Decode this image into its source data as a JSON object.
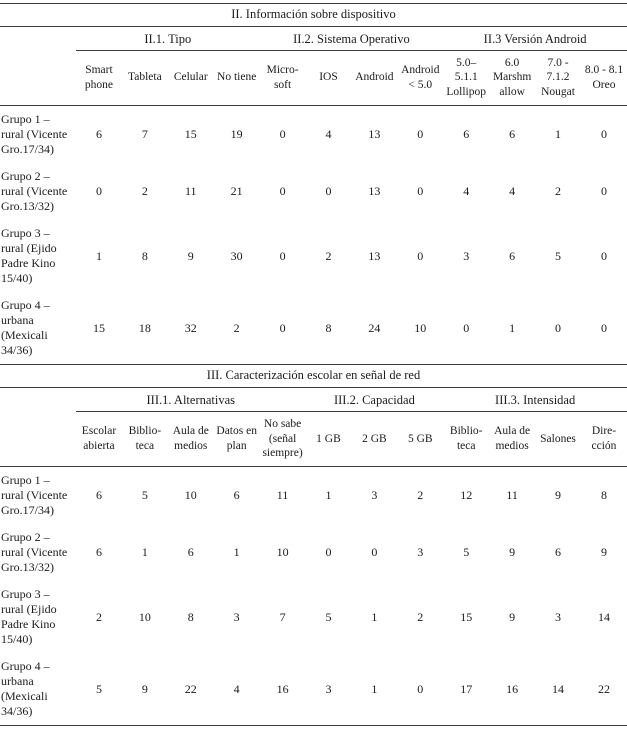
{
  "colors": {
    "rule": "#3c3c3c",
    "text": "#1b1b1b",
    "background": "#ffffff"
  },
  "table1": {
    "title": "II. Información sobre dispositivo",
    "groups": [
      {
        "label": "II.1. Tipo",
        "span": 4
      },
      {
        "label": "II.2. Sistema Operativo",
        "span": 4
      },
      {
        "label": "II.3 Versión Android",
        "span": 4
      }
    ],
    "columns": [
      "Smart phone",
      "Tableta",
      "Celular",
      "No tiene",
      "Micro- soft",
      "IOS",
      "Android",
      "Android < 5.0",
      "5.0– 5.1.1 Lollipop",
      "6.0 Marshm allow",
      "7.0 - 7.1.2 Nougat",
      "8.0 - 8.1 Oreo"
    ],
    "rows": [
      {
        "label": "Grupo 1 – rural (Vicente Gro.17/34)",
        "values": [
          6,
          7,
          15,
          19,
          0,
          4,
          13,
          0,
          6,
          6,
          1,
          0
        ]
      },
      {
        "label": "Grupo 2 – rural (Vicente Gro.13/32)",
        "values": [
          0,
          2,
          11,
          21,
          0,
          0,
          13,
          0,
          4,
          4,
          2,
          0
        ]
      },
      {
        "label": "Grupo 3 – rural (Ejido Padre Kino 15/40)",
        "values": [
          1,
          8,
          9,
          30,
          0,
          2,
          13,
          0,
          3,
          6,
          5,
          0
        ]
      },
      {
        "label": "Grupo 4 – urbana (Mexicali 34/36)",
        "values": [
          15,
          18,
          32,
          2,
          0,
          8,
          24,
          10,
          0,
          1,
          0,
          0
        ]
      }
    ]
  },
  "table2": {
    "title": "III. Caracterización escolar en señal de red",
    "groups": [
      {
        "label": "III.1. Alternativas",
        "span": 5
      },
      {
        "label": "III.2. Capacidad",
        "span": 3
      },
      {
        "label": "III.3. Intensidad",
        "span": 4
      }
    ],
    "columns": [
      "Escolar abierta",
      "Biblio- teca",
      "Aula de medios",
      "Datos en plan",
      "No sabe (señal siempre)",
      "1 GB",
      "2 GB",
      "5 GB",
      "Biblio- teca",
      "Aula de medios",
      "Salones",
      "Dire- cción"
    ],
    "rows": [
      {
        "label": "Grupo 1 – rural (Vicente Gro.17/34)",
        "values": [
          6,
          5,
          10,
          6,
          11,
          1,
          3,
          2,
          12,
          11,
          9,
          8
        ]
      },
      {
        "label": "Grupo 2 – rural (Vicente Gro.13/32)",
        "values": [
          6,
          1,
          6,
          1,
          10,
          0,
          0,
          3,
          5,
          9,
          6,
          9
        ]
      },
      {
        "label": "Grupo 3 – rural (Ejido Padre Kino 15/40)",
        "values": [
          2,
          10,
          8,
          3,
          7,
          5,
          1,
          2,
          15,
          9,
          3,
          14
        ]
      },
      {
        "label": "Grupo 4 – urbana (Mexicali 34/36)",
        "values": [
          5,
          9,
          22,
          4,
          16,
          3,
          1,
          0,
          17,
          16,
          14,
          22
        ]
      }
    ]
  }
}
